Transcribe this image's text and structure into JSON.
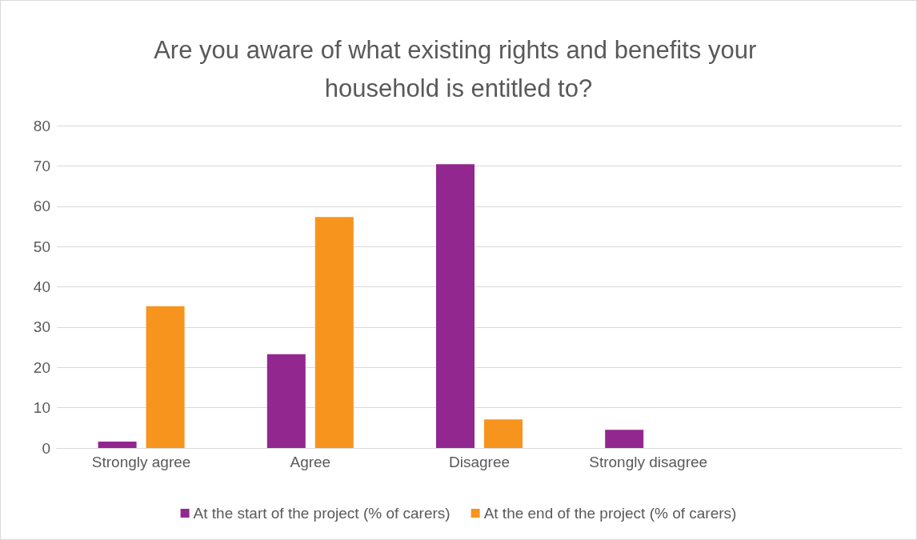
{
  "chart_data": {
    "type": "bar",
    "title": "Are you aware of what existing rights and benefits your household is entitled to?",
    "categories": [
      "Strongly agree",
      "Agree",
      "Disagree",
      "Strongly disagree",
      null
    ],
    "series": [
      {
        "name": "At the start of the project (% of carers)",
        "color": "#92278f",
        "values": [
          1.6,
          23.3,
          70.4,
          4.5,
          null
        ]
      },
      {
        "name": "At the end of the project (% of carers)",
        "color": "#f7941d",
        "values": [
          35.2,
          57.3,
          7.1,
          0,
          null
        ]
      }
    ],
    "ylim": [
      0,
      80
    ],
    "yticks": [
      0,
      10,
      20,
      30,
      40,
      50,
      60,
      70,
      80
    ],
    "grid": "y",
    "legend": "bottom"
  }
}
